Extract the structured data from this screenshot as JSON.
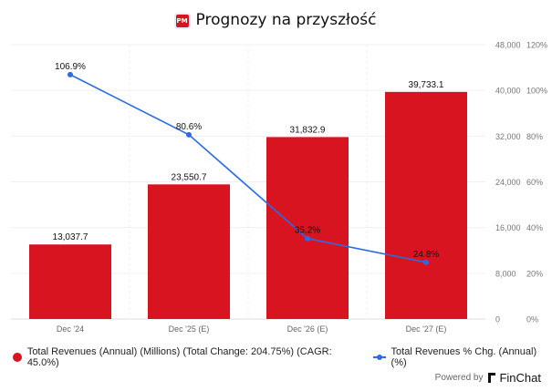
{
  "title": "Prognozy na przyszłość",
  "logo_text": "PM",
  "chart_data": {
    "type": "bar+line",
    "categories": [
      "Dec '24",
      "Dec '25 (E)",
      "Dec '26 (E)",
      "Dec '27 (E)"
    ],
    "series": [
      {
        "name": "Total Revenues (Annual) (Millions) (Total Change: 204.75%) (CAGR: 45.0%)",
        "type": "bar",
        "axis": "left",
        "values": [
          13037.7,
          23550.7,
          31832.9,
          39733.1
        ],
        "labels": [
          "13,037.7",
          "23,550.7",
          "31,832.9",
          "39,733.1"
        ],
        "color": "#d7141f"
      },
      {
        "name": "Total Revenues % Chg. (Annual) (%)",
        "type": "line",
        "axis": "right",
        "values": [
          106.9,
          80.6,
          35.2,
          24.8
        ],
        "labels": [
          "106.9%",
          "80.6%",
          "35.2%",
          "24.8%"
        ],
        "color": "#2d6be4"
      }
    ],
    "y_left": {
      "range": [
        0,
        48000
      ],
      "ticks": [
        "0",
        "8,000",
        "16,000",
        "24,000",
        "32,000",
        "40,000",
        "48,000"
      ]
    },
    "y_right": {
      "range": [
        0,
        120
      ],
      "ticks": [
        "0%",
        "20%",
        "40%",
        "60%",
        "80%",
        "100%",
        "120%"
      ]
    },
    "grid": true,
    "legend": "bottom"
  },
  "footer": {
    "powered_by": "Powered by",
    "brand": "FinChat"
  }
}
